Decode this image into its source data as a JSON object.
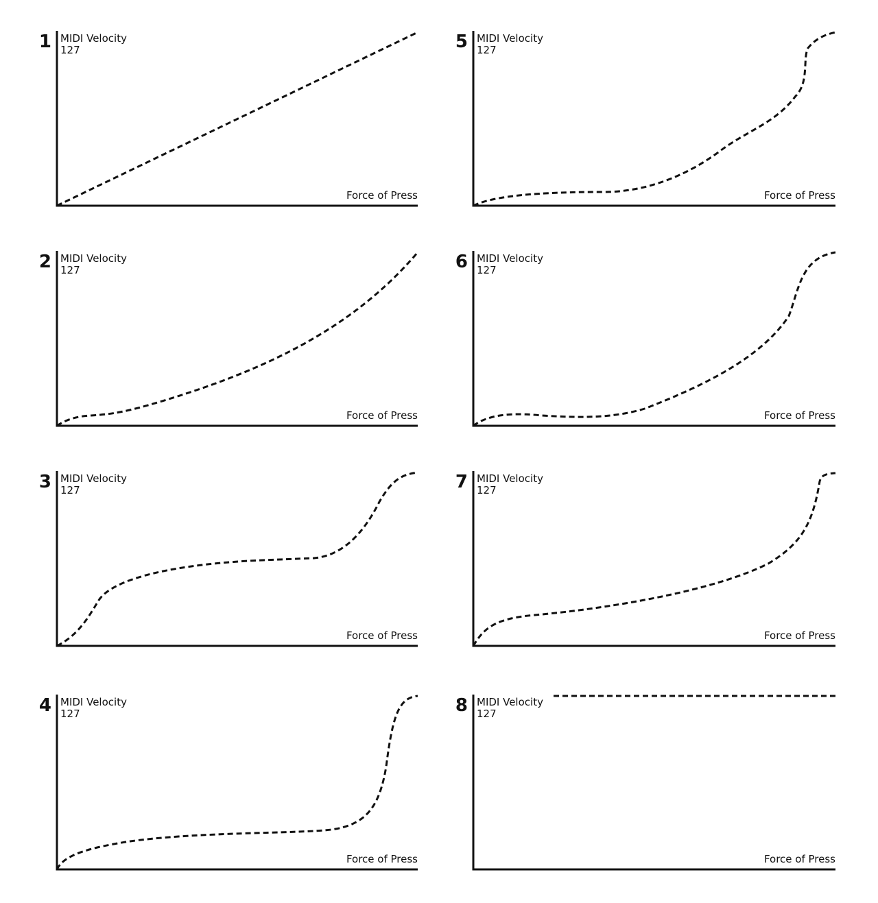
{
  "panels": [
    {
      "number": 1,
      "y_label": "MIDI Velocity",
      "y_max": 127,
      "x_label": "Force of Press"
    },
    {
      "number": 2,
      "y_label": "MIDI Velocity",
      "y_max": 127,
      "x_label": "Force of Press"
    },
    {
      "number": 3,
      "y_label": "MIDI Velocity",
      "y_max": 127,
      "x_label": "Force of Press"
    },
    {
      "number": 4,
      "y_label": "MIDI Velocity",
      "y_max": 127,
      "x_label": "Force of Press"
    },
    {
      "number": 5,
      "y_label": "MIDI Velocity",
      "y_max": 127,
      "x_label": "Force of Press"
    },
    {
      "number": 6,
      "y_label": "MIDI Velocity",
      "y_max": 127,
      "x_label": "Force of Press"
    },
    {
      "number": 7,
      "y_label": "MIDI Velocity",
      "y_max": 127,
      "x_label": "Force of Press"
    },
    {
      "number": 8,
      "y_label": "MIDI Velocity",
      "y_max": 127,
      "x_label": "Force of Press"
    }
  ]
}
